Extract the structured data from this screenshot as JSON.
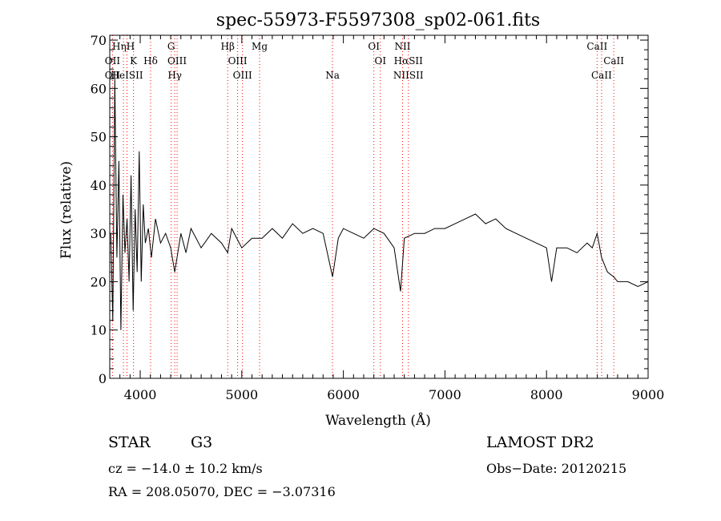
{
  "chart_data": {
    "type": "line",
    "title": "spec-55973-F5597308_sp02-061.fits",
    "xlabel": "Wavelength (Å)",
    "ylabel": "Flux (relative)",
    "xlim": [
      3700,
      9000
    ],
    "ylim": [
      0,
      71
    ],
    "xticks": [
      4000,
      5000,
      6000,
      7000,
      8000,
      9000
    ],
    "yticks": [
      0,
      10,
      20,
      30,
      40,
      50,
      60,
      70
    ],
    "grid": false,
    "line_color": "#000000",
    "marker_color": "#ff0000",
    "series": [
      {
        "x": [
          3710,
          3730,
          3750,
          3770,
          3790,
          3810,
          3830,
          3850,
          3870,
          3890,
          3910,
          3930,
          3950,
          3970,
          3990,
          4010,
          4030,
          4050,
          4080,
          4110,
          4150,
          4200,
          4250,
          4300,
          4340,
          4400,
          4450,
          4500,
          4600,
          4700,
          4800,
          4861,
          4900,
          5000,
          5100,
          5200,
          5300,
          5400,
          5500,
          5600,
          5700,
          5800,
          5893,
          5950,
          6000,
          6100,
          6200,
          6300,
          6400,
          6500,
          6563,
          6600,
          6700,
          6800,
          6900,
          7000,
          7100,
          7200,
          7300,
          7400,
          7500,
          7600,
          7700,
          7800,
          7900,
          8000,
          8050,
          8100,
          8200,
          8300,
          8400,
          8450,
          8498,
          8542,
          8600,
          8662,
          8700,
          8800,
          8900,
          9000
        ],
        "y": [
          30,
          12,
          62,
          25,
          45,
          10,
          38,
          26,
          33,
          20,
          42,
          14,
          35,
          22,
          47,
          20,
          36,
          28,
          31,
          25,
          33,
          28,
          30,
          27,
          22,
          30,
          26,
          31,
          27,
          30,
          28,
          26,
          31,
          27,
          29,
          29,
          31,
          29,
          32,
          30,
          31,
          30,
          21,
          29,
          31,
          30,
          29,
          31,
          30,
          27,
          18,
          29,
          30,
          30,
          31,
          31,
          32,
          33,
          34,
          32,
          33,
          31,
          30,
          29,
          28,
          27,
          20,
          27,
          27,
          26,
          28,
          27,
          30,
          25,
          22,
          21,
          20,
          20,
          19,
          20
        ]
      }
    ],
    "line_markers": [
      {
        "label": "OII",
        "x": 3727,
        "row": 2
      },
      {
        "label": "HηH",
        "x": 3835,
        "row": 1
      },
      {
        "label": "K",
        "x": 3934,
        "row": 2
      },
      {
        "label": "Hδ",
        "x": 4102,
        "row": 2
      },
      {
        "label": "G",
        "x": 4305,
        "row": 1
      },
      {
        "label": "OIII",
        "x": 4363,
        "row": 2
      },
      {
        "label": "Hβ",
        "x": 4861,
        "row": 1
      },
      {
        "label": "OIII",
        "x": 4959,
        "row": 2
      },
      {
        "label": "Mg",
        "x": 5175,
        "row": 1
      },
      {
        "label": "OI",
        "x": 6300,
        "row": 1
      },
      {
        "label": "OI",
        "x": 6364,
        "row": 2
      },
      {
        "label": "NII",
        "x": 6583,
        "row": 1
      },
      {
        "label": "HαSII",
        "x": 6640,
        "row": 2
      },
      {
        "label": "CaII",
        "x": 8498,
        "row": 1
      },
      {
        "label": "CaII",
        "x": 8662,
        "row": 2
      },
      {
        "label": "OII",
        "x": 3727,
        "row": 3
      },
      {
        "label": "HeISII",
        "x": 3870,
        "row": 3
      },
      {
        "label": "Hγ",
        "x": 4340,
        "row": 3
      },
      {
        "label": "OIII",
        "x": 5007,
        "row": 3
      },
      {
        "label": "Na",
        "x": 5893,
        "row": 3
      },
      {
        "label": "NIISII",
        "x": 6640,
        "row": 3
      },
      {
        "label": "CaII",
        "x": 8542,
        "row": 3
      }
    ]
  },
  "info": {
    "object_type": "STAR",
    "subclass": "G3",
    "survey": "LAMOST DR2",
    "cz": "cz = −14.0 ± 10.2 km/s",
    "obs_date": "Obs−Date: 20120215",
    "radec": "RA = 208.05070, DEC =  −3.07316"
  }
}
